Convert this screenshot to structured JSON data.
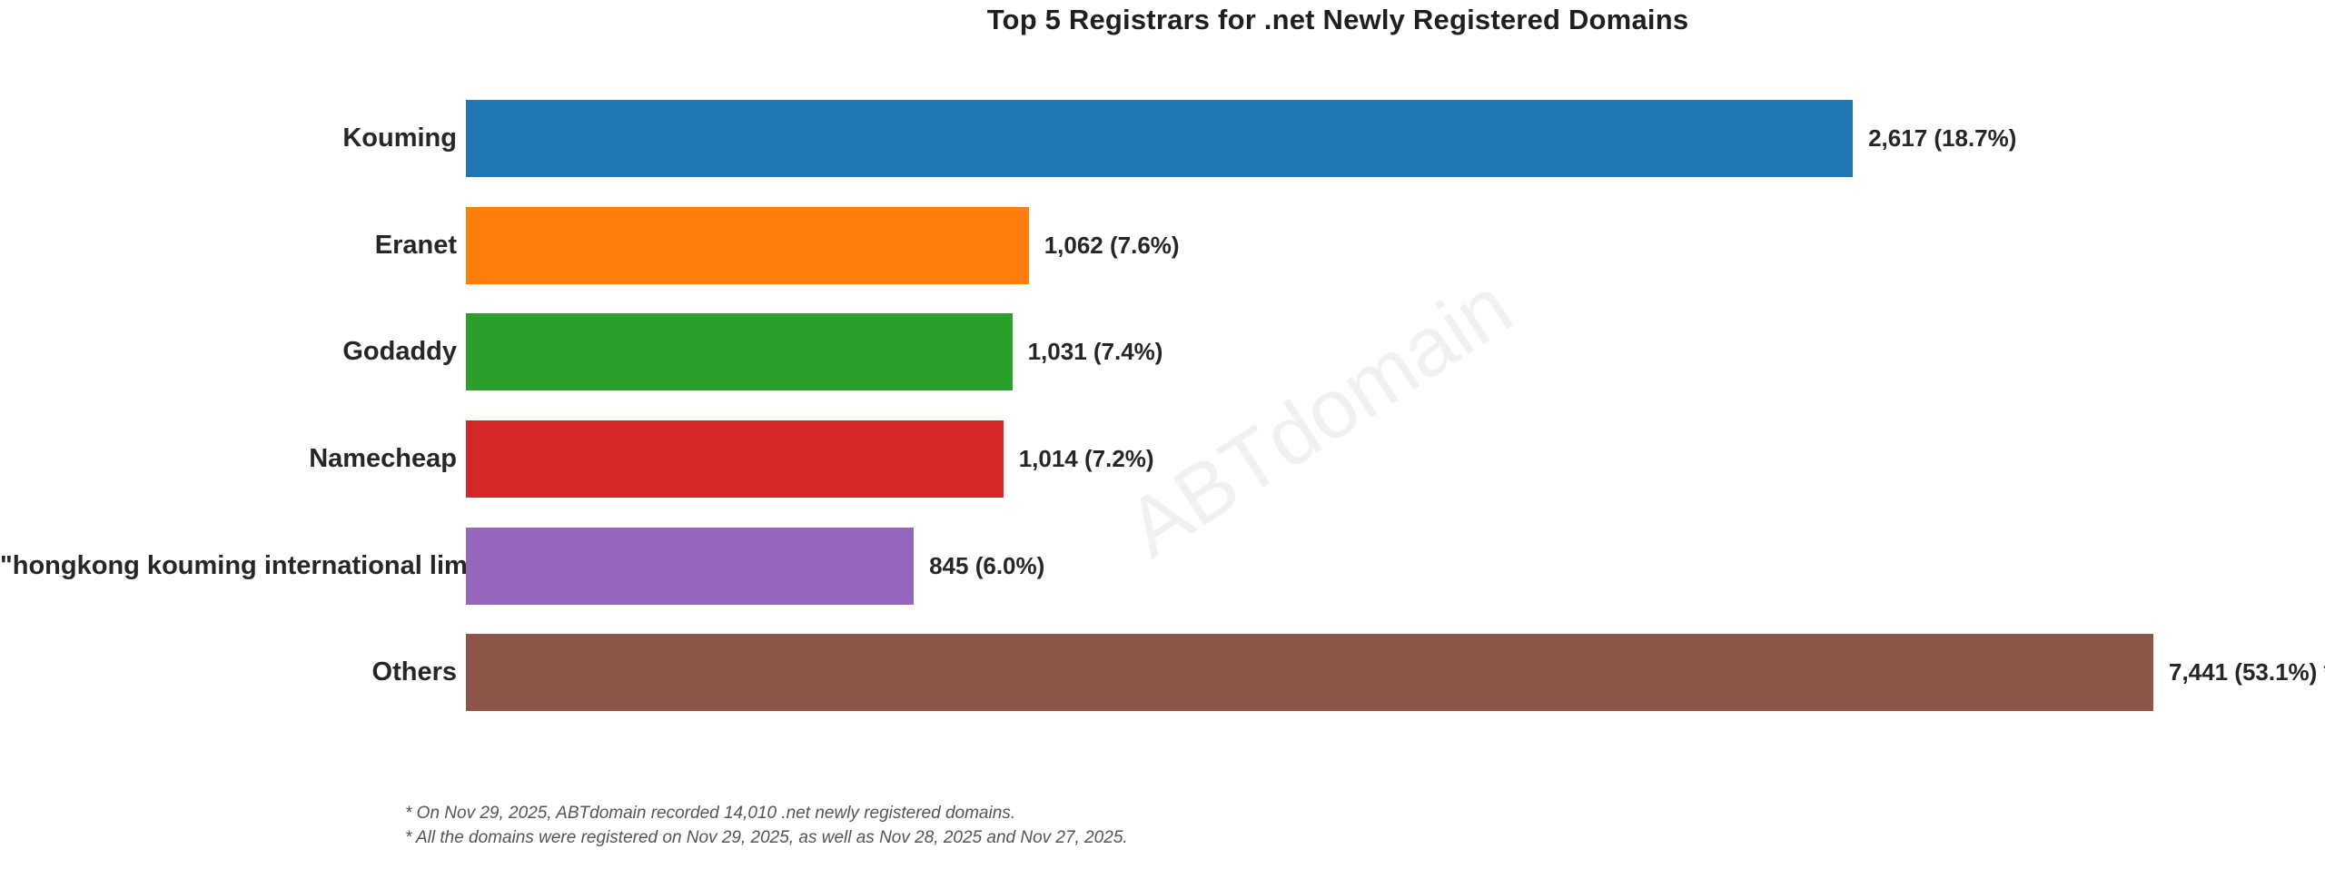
{
  "chart": {
    "title": "Top 5 Registrars for .net Newly Registered Domains",
    "watermark": "ABTdomain"
  },
  "chart_data": {
    "type": "bar",
    "orientation": "horizontal",
    "title": "Top 5 Registrars for .net Newly Registered Domains",
    "categories": [
      "Kouming",
      "Eranet",
      "Godaddy",
      "Namecheap",
      "\"hongkong kouming international limited\"",
      "Others"
    ],
    "values": [
      2617,
      1062,
      1031,
      1014,
      845,
      7441
    ],
    "value_labels": [
      "2,617 (18.7%)",
      "1,062 (7.6%)",
      "1,031 (7.4%)",
      "1,014 (7.2%)",
      "845 (6.0%)",
      "7,441 (53.1%) *"
    ],
    "bar_colors": [
      "#1f77b4",
      "#ff7f0e",
      "#2ca02c",
      "#d62728",
      "#9467bd",
      "#8c564b"
    ],
    "xlabel": "",
    "ylabel": "",
    "xlim": [
      0,
      3184
    ],
    "grid": false,
    "legend": false,
    "bars_clipped_at_xmax": [
      "Others"
    ]
  },
  "footnotes": [
    "* On Nov 29, 2025, ABTdomain recorded 14,010 .net newly registered domains.",
    "* All the domains were registered on Nov 29, 2025, as well as Nov 28, 2025 and Nov 27, 2025."
  ]
}
